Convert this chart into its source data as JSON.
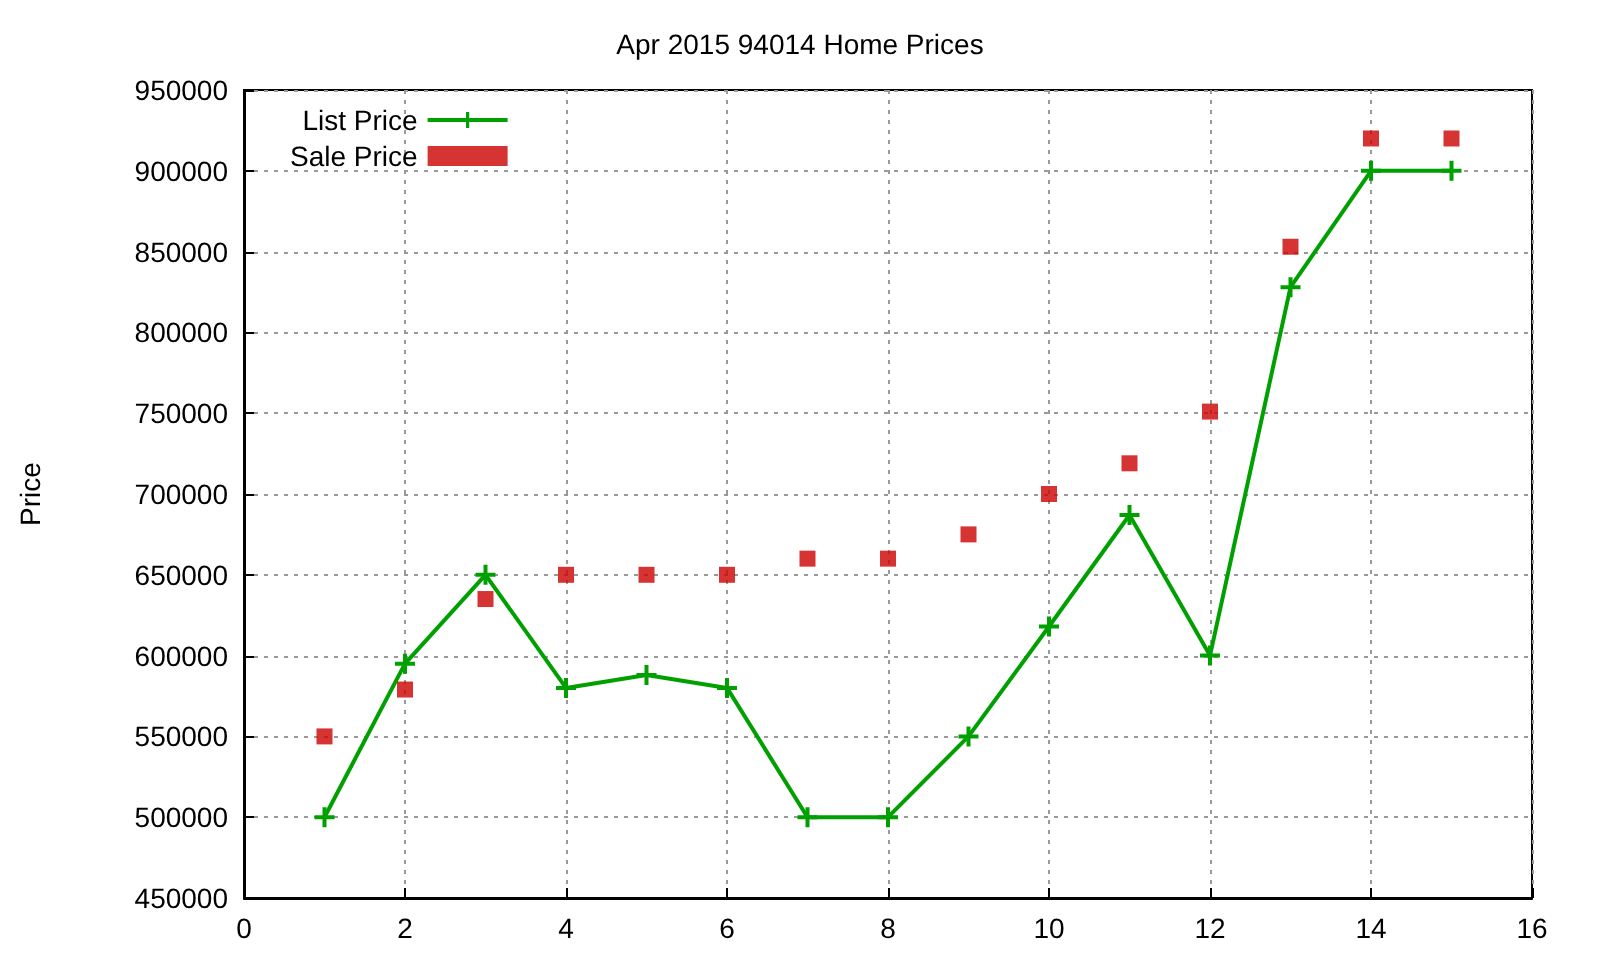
{
  "chart_data": {
    "type": "line",
    "title": "Apr 2015 94014 Home Prices",
    "ylabel": "Price",
    "x": [
      1,
      2,
      3,
      4,
      5,
      6,
      7,
      8,
      9,
      10,
      11,
      12,
      13,
      14,
      15
    ],
    "series": [
      {
        "name": "List Price",
        "type": "line",
        "color": "#00a000",
        "marker": "cross",
        "values": [
          500000,
          595000,
          650000,
          580000,
          588000,
          580000,
          500000,
          500000,
          550000,
          618000,
          687000,
          600000,
          828000,
          900000,
          900000
        ]
      },
      {
        "name": "Sale Price",
        "type": "scatter",
        "color": "#cc0000",
        "marker": "square",
        "values": [
          550000,
          579000,
          635000,
          650000,
          650000,
          650000,
          660000,
          660000,
          675000,
          700000,
          719000,
          751000,
          853000,
          920000,
          920000
        ]
      }
    ],
    "xlim": [
      0,
      16
    ],
    "xticks": [
      0,
      2,
      4,
      6,
      8,
      10,
      12,
      14,
      16
    ],
    "ylim": [
      450000,
      950000
    ],
    "yticks": [
      450000,
      500000,
      550000,
      600000,
      650000,
      700000,
      750000,
      800000,
      850000,
      900000,
      950000
    ],
    "grid": true,
    "legend": "top left"
  }
}
